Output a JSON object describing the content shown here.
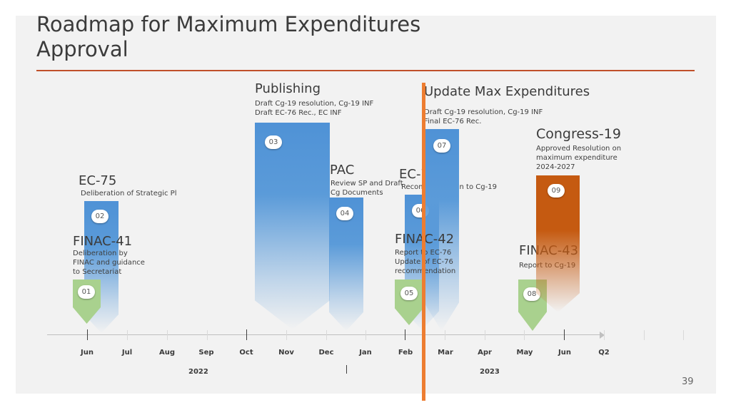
{
  "slide": {
    "title": "Roadmap for Maximum Expenditures Approval",
    "page_number": "39",
    "accent_color": "#c0502a"
  },
  "milestones": {
    "ec75": {
      "title": "EC-75",
      "desc": "Deliberation of Strategic Pl",
      "badge": "02",
      "color": "#5b9bd9"
    },
    "finac41": {
      "title": "FINAC-41",
      "desc_lines": [
        "Deliberation by",
        "FINAC and guidance",
        "to Secretariat"
      ],
      "badge": "01",
      "color": "#a9d18e"
    },
    "publishing": {
      "title": "Publishing",
      "desc_lines": [
        "Draft Cg-19 resolution, Cg-19 INF",
        "Draft EC-76 Rec., EC INF"
      ],
      "badge": "03",
      "color": "#5b9bd9"
    },
    "pac": {
      "title": "PAC",
      "desc_lines": [
        "Review SP and Draft",
        "Cg Documents"
      ],
      "badge": "04",
      "color": "#5b9bd9"
    },
    "ec76": {
      "title": "EC-76",
      "desc": "Recommendation to Cg-19",
      "badge": "06",
      "color": "#5b9bd9"
    },
    "finac42": {
      "title": "FINAC-42",
      "desc_lines": [
        "Report to EC-76",
        "Update of EC-76",
        "recommendation"
      ],
      "badge": "05",
      "color": "#a9d18e"
    },
    "update_max": {
      "title": "Update Max Expenditures",
      "desc_lines": [
        "Draft Cg-19 resolution, Cg-19 INF",
        "Final EC-76 Rec."
      ],
      "badge": "07",
      "color": "#5b9bd9"
    },
    "finac43": {
      "title": "FINAC-43",
      "desc": "Report to Cg-19",
      "badge": "08",
      "color": "#a9d18e"
    },
    "congress19": {
      "title": "Congress-19",
      "desc_lines": [
        "Approved Resolution on",
        "maximum expenditure",
        "2024-2027"
      ],
      "badge": "09",
      "color": "#c55a11"
    }
  },
  "timeline": {
    "months": [
      "Jun",
      "Jul",
      "Aug",
      "Sep",
      "Oct",
      "Nov",
      "Dec",
      "Jan",
      "Feb",
      "Mar",
      "Apr",
      "May",
      "Jun",
      "Q2"
    ],
    "years": [
      "2022",
      "2023"
    ],
    "today_marker_color": "#ed7d31"
  }
}
